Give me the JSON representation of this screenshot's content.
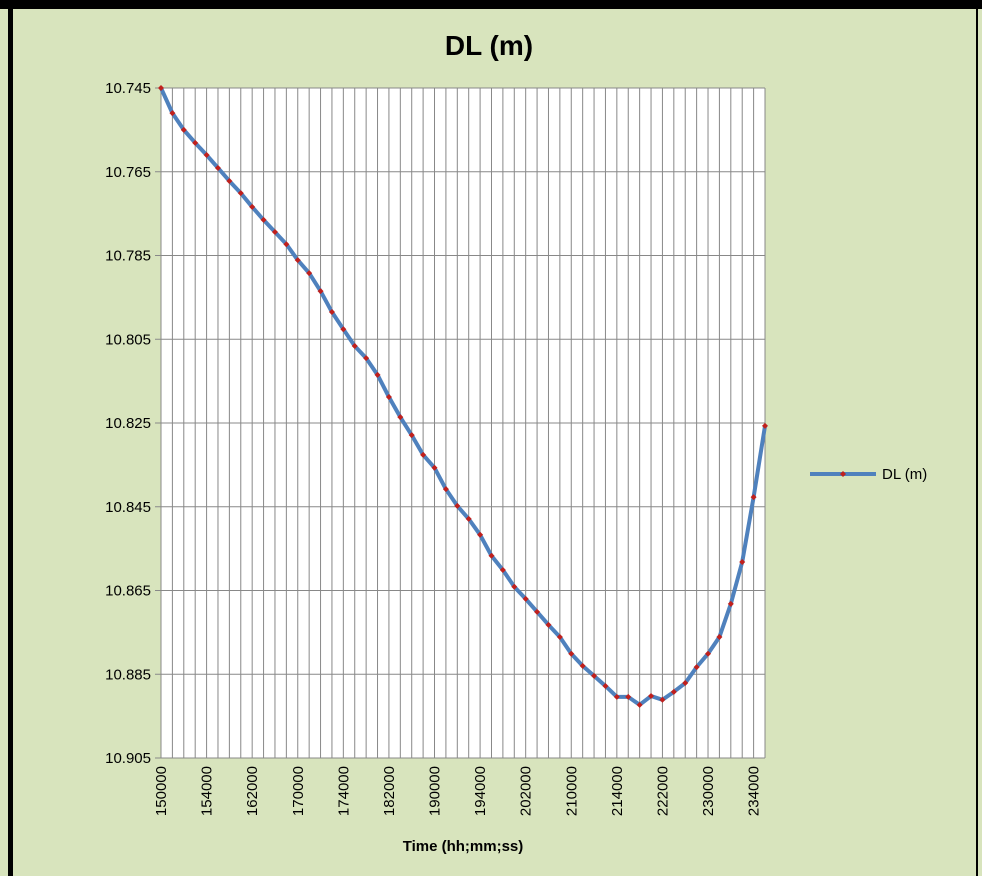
{
  "chart_data": {
    "type": "line",
    "title": "DL (m)",
    "x_label": "Time (hh;mm;ss)",
    "categories": [
      "150000",
      null,
      null,
      null,
      "154000",
      null,
      null,
      null,
      "162000",
      null,
      null,
      null,
      "170000",
      null,
      null,
      null,
      "174000",
      null,
      null,
      null,
      "182000",
      null,
      null,
      null,
      "190000",
      null,
      null,
      null,
      "194000",
      null,
      null,
      null,
      "202000",
      null,
      null,
      null,
      "210000",
      null,
      null,
      null,
      "214000",
      null,
      null,
      null,
      "222000",
      null,
      null,
      null,
      "230000",
      null,
      null,
      null,
      "234000",
      null
    ],
    "series": [
      {
        "name": "DL (m)",
        "color": "#4f81bd",
        "marker_color": "#c0201d",
        "values": [
          10.745,
          10.751,
          10.755,
          10.7581,
          10.761,
          10.7641,
          10.7672,
          10.7701,
          10.7734,
          10.7765,
          10.7794,
          10.7823,
          10.7861,
          10.7892,
          10.7935,
          10.7985,
          10.8026,
          10.8066,
          10.8095,
          10.8135,
          10.8188,
          10.8236,
          10.8279,
          10.8326,
          10.8357,
          10.8408,
          10.8448,
          10.8479,
          10.8517,
          10.8567,
          10.8601,
          10.8641,
          10.867,
          10.8701,
          10.8732,
          10.8761,
          10.8801,
          10.883,
          10.8854,
          10.8878,
          10.8904,
          10.8904,
          10.8923,
          10.8902,
          10.8911,
          10.8892,
          10.8871,
          10.8833,
          10.8801,
          10.8761,
          10.8682,
          10.8582,
          10.8427,
          10.8257
        ]
      }
    ],
    "ylim": [
      10.745,
      10.905
    ],
    "y_inverted": true,
    "yticks": [
      10.745,
      10.765,
      10.785,
      10.805,
      10.825,
      10.845,
      10.865,
      10.885,
      10.905
    ],
    "grid": true,
    "legend": "right"
  }
}
